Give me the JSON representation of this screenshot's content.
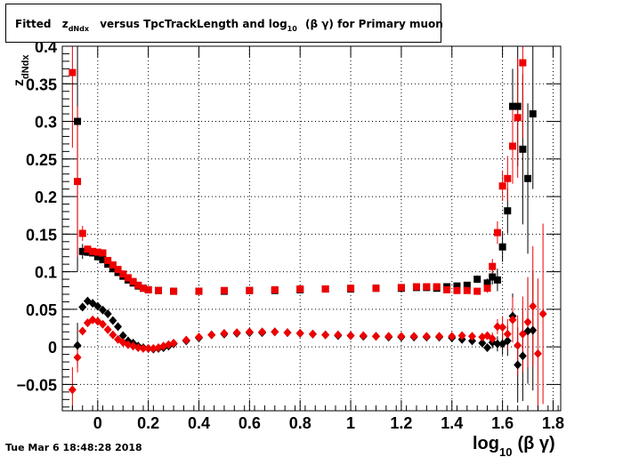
{
  "title": {
    "prefix": "Fitted",
    "z": "z",
    "sub": "dNdx",
    "middle": "versus TpcTrackLength and log",
    "log_sub": "10",
    "tail": "(β γ) for Primary muon+"
  },
  "timestamp": "Tue Mar  6 18:48:28 2018",
  "chart_data": {
    "type": "scatter",
    "xlabel": {
      "main": "log",
      "sub": "10",
      "tail": "(β γ)"
    },
    "ylabel": {
      "main": "z",
      "sub": "dNdx"
    },
    "xlim": [
      -0.14,
      1.83
    ],
    "ylim": [
      -0.085,
      0.4
    ],
    "grid": true,
    "x_ticks": [
      0,
      0.2,
      0.4,
      0.6,
      0.8,
      1,
      1.2,
      1.4,
      1.6,
      1.8
    ],
    "x_tick_labels": [
      "0",
      "0.2",
      "0.4",
      "0.6",
      "0.8",
      "1",
      "1.2",
      "1.4",
      "1.6",
      "1.8"
    ],
    "y_ticks": [
      -0.05,
      0,
      0.05,
      0.1,
      0.15,
      0.2,
      0.25,
      0.3,
      0.35,
      0.4
    ],
    "y_tick_labels": [
      "−0.05",
      "0",
      "0.05",
      "0.1",
      "0.15",
      "0.2",
      "0.25",
      "0.3",
      "0.35",
      "0.4"
    ],
    "series": [
      {
        "color": "#000000",
        "marker": "square",
        "points": [
          [
            -0.08,
            0.3,
            0.2
          ],
          [
            -0.06,
            0.127,
            0.01
          ],
          [
            -0.04,
            0.126,
            0.005
          ],
          [
            -0.02,
            0.125,
            0.004
          ],
          [
            0,
            0.12,
            0.003
          ],
          [
            0.02,
            0.116,
            0.003
          ],
          [
            0.04,
            0.11,
            0.002
          ],
          [
            0.06,
            0.104,
            0.002
          ],
          [
            0.08,
            0.099,
            0.002
          ],
          [
            0.1,
            0.094,
            0.002
          ],
          [
            0.12,
            0.089,
            0.002
          ],
          [
            0.14,
            0.085,
            0.002
          ],
          [
            0.16,
            0.081,
            0.002
          ],
          [
            0.18,
            0.078,
            0.001
          ],
          [
            0.2,
            0.076,
            0.001
          ],
          [
            0.24,
            0.075,
            0.001
          ],
          [
            0.3,
            0.074,
            0.001
          ],
          [
            0.4,
            0.074,
            0.001
          ],
          [
            0.5,
            0.074,
            0.001
          ],
          [
            0.6,
            0.075,
            0.001
          ],
          [
            0.7,
            0.075,
            0.001
          ],
          [
            0.8,
            0.076,
            0.001
          ],
          [
            0.9,
            0.077,
            0.001
          ],
          [
            1.0,
            0.077,
            0.001
          ],
          [
            1.1,
            0.078,
            0.001
          ],
          [
            1.2,
            0.078,
            0.001
          ],
          [
            1.26,
            0.079,
            0.001
          ],
          [
            1.3,
            0.079,
            0.001
          ],
          [
            1.34,
            0.078,
            0.002
          ],
          [
            1.38,
            0.08,
            0.002
          ],
          [
            1.42,
            0.081,
            0.003
          ],
          [
            1.46,
            0.082,
            0.003
          ],
          [
            1.5,
            0.09,
            0.005
          ],
          [
            1.54,
            0.085,
            0.006
          ],
          [
            1.56,
            0.093,
            0.01
          ],
          [
            1.58,
            0.089,
            0.015
          ],
          [
            1.6,
            0.133,
            0.02
          ],
          [
            1.62,
            0.181,
            0.03
          ],
          [
            1.64,
            0.32,
            0.05
          ],
          [
            1.66,
            0.32,
            0.08
          ],
          [
            1.68,
            0.263,
            0.1
          ],
          [
            1.7,
            0.224,
            0.1
          ],
          [
            1.72,
            0.31,
            0.1
          ]
        ]
      },
      {
        "color": "#ee0000",
        "marker": "square",
        "points": [
          [
            -0.1,
            0.365,
            0.1
          ],
          [
            -0.08,
            0.22,
            0.1
          ],
          [
            -0.06,
            0.151,
            0.01
          ],
          [
            -0.04,
            0.13,
            0.005
          ],
          [
            -0.02,
            0.127,
            0.004
          ],
          [
            0,
            0.126,
            0.003
          ],
          [
            0.02,
            0.125,
            0.003
          ],
          [
            0.04,
            0.115,
            0.002
          ],
          [
            0.06,
            0.109,
            0.002
          ],
          [
            0.08,
            0.103,
            0.002
          ],
          [
            0.1,
            0.097,
            0.002
          ],
          [
            0.12,
            0.092,
            0.002
          ],
          [
            0.14,
            0.087,
            0.002
          ],
          [
            0.16,
            0.082,
            0.002
          ],
          [
            0.18,
            0.078,
            0.001
          ],
          [
            0.2,
            0.076,
            0.001
          ],
          [
            0.24,
            0.075,
            0.001
          ],
          [
            0.3,
            0.074,
            0.001
          ],
          [
            0.4,
            0.074,
            0.001
          ],
          [
            0.5,
            0.075,
            0.001
          ],
          [
            0.6,
            0.075,
            0.001
          ],
          [
            0.7,
            0.076,
            0.001
          ],
          [
            0.8,
            0.077,
            0.001
          ],
          [
            0.9,
            0.077,
            0.001
          ],
          [
            1.0,
            0.078,
            0.001
          ],
          [
            1.1,
            0.078,
            0.001
          ],
          [
            1.2,
            0.079,
            0.001
          ],
          [
            1.26,
            0.08,
            0.001
          ],
          [
            1.3,
            0.08,
            0.001
          ],
          [
            1.34,
            0.08,
            0.002
          ],
          [
            1.38,
            0.076,
            0.002
          ],
          [
            1.42,
            0.075,
            0.002
          ],
          [
            1.46,
            0.075,
            0.003
          ],
          [
            1.5,
            0.074,
            0.004
          ],
          [
            1.54,
            0.078,
            0.006
          ],
          [
            1.56,
            0.107,
            0.01
          ],
          [
            1.58,
            0.152,
            0.015
          ],
          [
            1.6,
            0.214,
            0.02
          ],
          [
            1.62,
            0.224,
            0.03
          ],
          [
            1.64,
            0.267,
            0.05
          ],
          [
            1.66,
            0.305,
            0.08
          ],
          [
            1.68,
            0.378,
            0.1
          ]
        ]
      },
      {
        "color": "#000000",
        "marker": "diamond",
        "points": [
          [
            -0.08,
            0.002,
            0.03
          ],
          [
            -0.06,
            0.053,
            0.005
          ],
          [
            -0.04,
            0.061,
            0.003
          ],
          [
            -0.02,
            0.058,
            0.003
          ],
          [
            0,
            0.054,
            0.002
          ],
          [
            0.02,
            0.049,
            0.002
          ],
          [
            0.04,
            0.044,
            0.002
          ],
          [
            0.06,
            0.035,
            0.002
          ],
          [
            0.08,
            0.027,
            0.002
          ],
          [
            0.1,
            0.015,
            0.002
          ],
          [
            0.12,
            0.008,
            0.001
          ],
          [
            0.14,
            0.005,
            0.001
          ],
          [
            0.16,
            0.001,
            0.001
          ],
          [
            0.18,
            -0.001,
            0.001
          ],
          [
            0.2,
            -0.002,
            0.001
          ],
          [
            0.22,
            -0.003,
            0.001
          ],
          [
            0.24,
            -0.002,
            0.001
          ],
          [
            0.26,
            -0.001,
            0.001
          ],
          [
            0.28,
            0.001,
            0.001
          ],
          [
            0.3,
            0.004,
            0.001
          ],
          [
            0.35,
            0.008,
            0.001
          ],
          [
            0.4,
            0.012,
            0.001
          ],
          [
            0.45,
            0.016,
            0.001
          ],
          [
            0.5,
            0.017,
            0.001
          ],
          [
            0.55,
            0.018,
            0.001
          ],
          [
            0.6,
            0.019,
            0.001
          ],
          [
            0.65,
            0.019,
            0.001
          ],
          [
            0.7,
            0.02,
            0.001
          ],
          [
            0.75,
            0.019,
            0.001
          ],
          [
            0.8,
            0.018,
            0.001
          ],
          [
            0.85,
            0.017,
            0.001
          ],
          [
            0.9,
            0.016,
            0.001
          ],
          [
            0.95,
            0.015,
            0.001
          ],
          [
            1.0,
            0.015,
            0.001
          ],
          [
            1.05,
            0.014,
            0.001
          ],
          [
            1.1,
            0.014,
            0.001
          ],
          [
            1.15,
            0.013,
            0.001
          ],
          [
            1.2,
            0.013,
            0.001
          ],
          [
            1.25,
            0.013,
            0.001
          ],
          [
            1.3,
            0.013,
            0.001
          ],
          [
            1.35,
            0.013,
            0.001
          ],
          [
            1.4,
            0.012,
            0.002
          ],
          [
            1.44,
            0.01,
            0.002
          ],
          [
            1.48,
            0.008,
            0.003
          ],
          [
            1.52,
            0.005,
            0.004
          ],
          [
            1.54,
            -0.001,
            0.005
          ],
          [
            1.56,
            0.006,
            0.008
          ],
          [
            1.58,
            0.004,
            0.01
          ],
          [
            1.6,
            0.004,
            0.015
          ],
          [
            1.62,
            0.008,
            0.02
          ],
          [
            1.64,
            0.041,
            0.03
          ],
          [
            1.66,
            -0.024,
            0.05
          ],
          [
            1.68,
            -0.012,
            0.06
          ],
          [
            1.7,
            0.021,
            0.07
          ],
          [
            1.72,
            0.022,
            0.08
          ]
        ]
      },
      {
        "color": "#ee0000",
        "marker": "diamond",
        "points": [
          [
            -0.1,
            -0.057,
            0.03
          ],
          [
            -0.08,
            -0.014,
            0.02
          ],
          [
            -0.06,
            0.021,
            0.005
          ],
          [
            -0.04,
            0.032,
            0.003
          ],
          [
            -0.02,
            0.036,
            0.003
          ],
          [
            0,
            0.034,
            0.002
          ],
          [
            0.02,
            0.03,
            0.002
          ],
          [
            0.04,
            0.023,
            0.002
          ],
          [
            0.06,
            0.016,
            0.002
          ],
          [
            0.08,
            0.01,
            0.002
          ],
          [
            0.1,
            0.006,
            0.001
          ],
          [
            0.12,
            0.003,
            0.001
          ],
          [
            0.14,
            0.001,
            0.001
          ],
          [
            0.16,
            -0.001,
            0.001
          ],
          [
            0.18,
            -0.002,
            0.001
          ],
          [
            0.2,
            -0.002,
            0.001
          ],
          [
            0.22,
            -0.002,
            0.001
          ],
          [
            0.24,
            -0.001,
            0.001
          ],
          [
            0.26,
            0.001,
            0.001
          ],
          [
            0.28,
            0.003,
            0.001
          ],
          [
            0.3,
            0.005,
            0.001
          ],
          [
            0.35,
            0.009,
            0.001
          ],
          [
            0.4,
            0.013,
            0.001
          ],
          [
            0.45,
            0.016,
            0.001
          ],
          [
            0.5,
            0.018,
            0.001
          ],
          [
            0.55,
            0.019,
            0.001
          ],
          [
            0.6,
            0.02,
            0.001
          ],
          [
            0.65,
            0.02,
            0.001
          ],
          [
            0.7,
            0.02,
            0.001
          ],
          [
            0.75,
            0.019,
            0.001
          ],
          [
            0.8,
            0.018,
            0.001
          ],
          [
            0.85,
            0.017,
            0.001
          ],
          [
            0.9,
            0.016,
            0.001
          ],
          [
            0.95,
            0.016,
            0.001
          ],
          [
            1.0,
            0.015,
            0.001
          ],
          [
            1.05,
            0.015,
            0.001
          ],
          [
            1.1,
            0.014,
            0.001
          ],
          [
            1.15,
            0.014,
            0.001
          ],
          [
            1.2,
            0.014,
            0.001
          ],
          [
            1.25,
            0.014,
            0.001
          ],
          [
            1.3,
            0.014,
            0.001
          ],
          [
            1.35,
            0.014,
            0.001
          ],
          [
            1.4,
            0.014,
            0.002
          ],
          [
            1.44,
            0.015,
            0.002
          ],
          [
            1.48,
            0.014,
            0.003
          ],
          [
            1.52,
            0.013,
            0.004
          ],
          [
            1.54,
            0.015,
            0.005
          ],
          [
            1.56,
            0.011,
            0.008
          ],
          [
            1.58,
            0.027,
            0.01
          ],
          [
            1.6,
            0.026,
            0.015
          ],
          [
            1.62,
            0.017,
            0.02
          ],
          [
            1.64,
            0.036,
            0.03
          ],
          [
            1.66,
            0.002,
            0.04
          ],
          [
            1.68,
            0.017,
            0.05
          ],
          [
            1.7,
            0.033,
            0.06
          ],
          [
            1.72,
            0.054,
            0.08
          ],
          [
            1.74,
            -0.009,
            0.1
          ],
          [
            1.76,
            0.044,
            0.12
          ]
        ]
      }
    ]
  }
}
